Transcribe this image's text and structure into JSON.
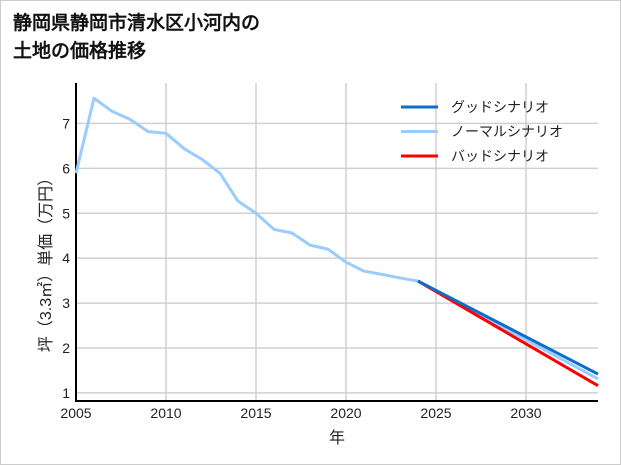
{
  "title_lines": [
    "静岡県静岡市清水区小河内の",
    "土地の価格推移"
  ],
  "chart_data": {
    "type": "line",
    "title": "静岡県静岡市清水区小河内の土地の価格推移",
    "xlabel": "年",
    "ylabel": "坪（3.3㎡）単価（万円）",
    "xlim": [
      2005,
      2034
    ],
    "ylim": [
      0.82,
      7.9
    ],
    "xticks": [
      2005,
      2010,
      2015,
      2020,
      2025,
      2030
    ],
    "yticks": [
      1,
      2,
      3,
      4,
      5,
      6,
      7
    ],
    "grid": true,
    "legend_position": "top-right",
    "series": [
      {
        "name": "グッドシナリオ",
        "color": "#0a6fcc",
        "x": [
          2024,
          2034
        ],
        "y": [
          3.49,
          1.42
        ]
      },
      {
        "name": "ノーマルシナリオ",
        "color": "#99ccff",
        "x": [
          2005,
          2006,
          2007,
          2008,
          2009,
          2010,
          2011,
          2012,
          2013,
          2014,
          2015,
          2016,
          2017,
          2018,
          2019,
          2020,
          2021,
          2022,
          2023,
          2024,
          2034
        ],
        "y": [
          5.89,
          7.56,
          7.27,
          7.09,
          6.82,
          6.78,
          6.44,
          6.2,
          5.89,
          5.27,
          5.0,
          4.64,
          4.56,
          4.29,
          4.2,
          3.91,
          3.71,
          3.64,
          3.56,
          3.49,
          1.31
        ]
      },
      {
        "name": "バッドシナリオ",
        "color": "#ff0000",
        "x": [
          2024,
          2034
        ],
        "y": [
          3.49,
          1.16
        ]
      }
    ]
  }
}
